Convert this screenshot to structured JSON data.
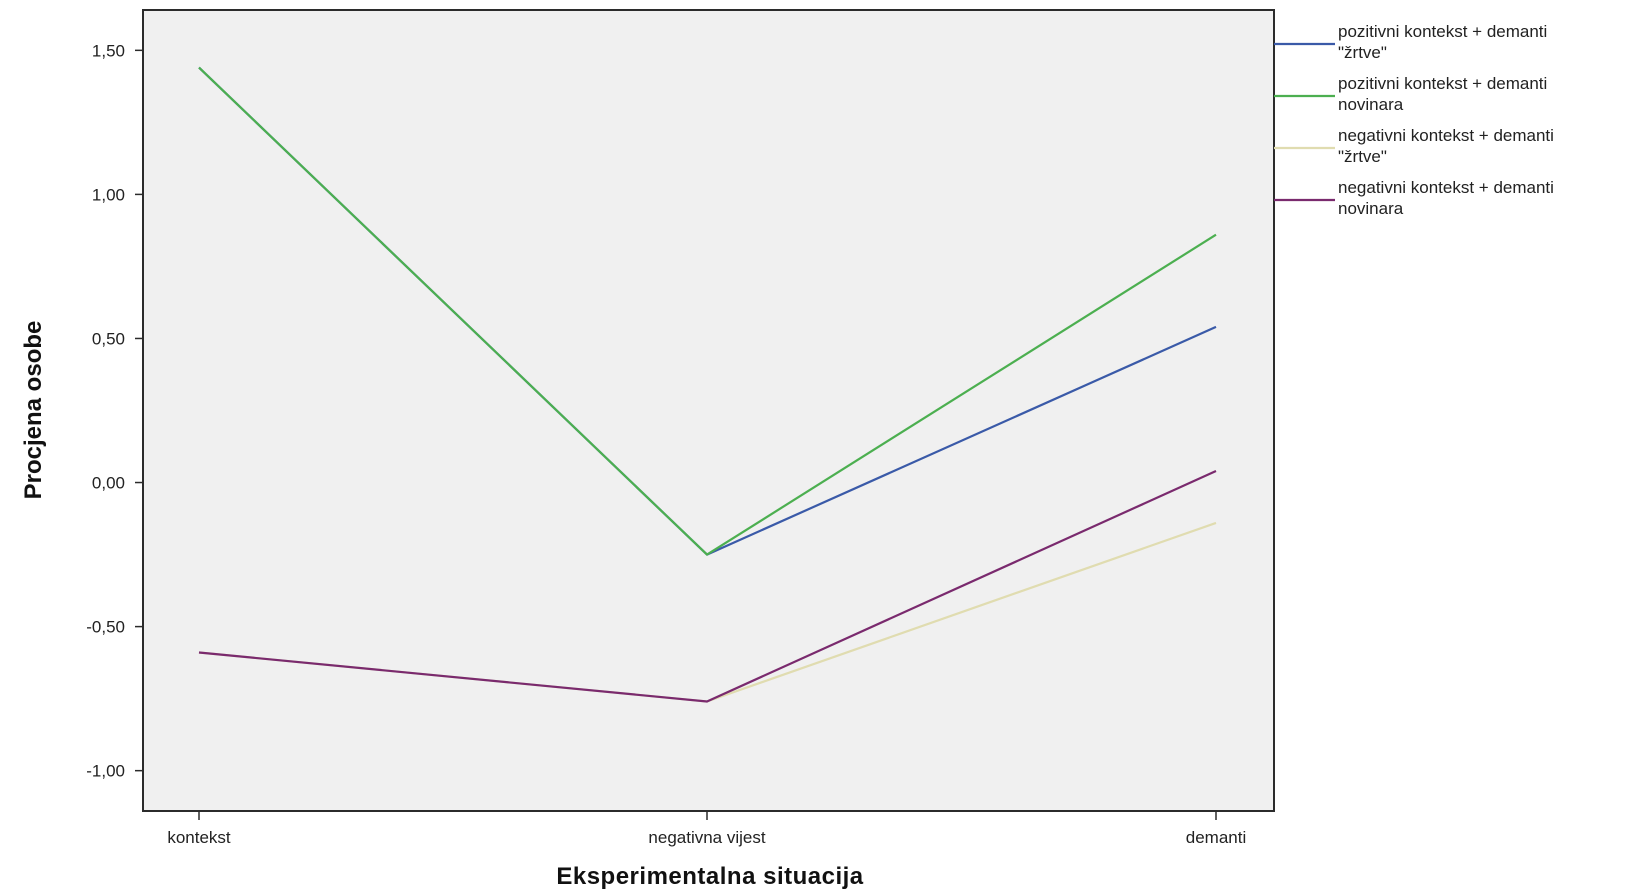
{
  "chart_data": {
    "type": "line",
    "xlabel": "Eksperimentalna situacija",
    "ylabel": "Procjena osobe",
    "categories": [
      "kontekst",
      "negativna vijest",
      "demanti"
    ],
    "yticks": [
      "1,50",
      "1,00",
      "0,50",
      "0,00",
      "-0,50",
      "-1,00"
    ],
    "ytick_values": [
      1.5,
      1.0,
      0.5,
      0.0,
      -0.5,
      -1.0
    ],
    "ylim": [
      -1.14,
      1.64
    ],
    "grid": false,
    "legend_position": "right",
    "plot_background": "#f0f0f0",
    "series": [
      {
        "name_lines": [
          "pozitivni kontekst + demanti",
          "\"žrtve\""
        ],
        "color": "#3a5aa8",
        "values": [
          1.44,
          -0.25,
          0.54
        ]
      },
      {
        "name_lines": [
          "pozitivni kontekst + demanti",
          "novinara"
        ],
        "color": "#4caf50",
        "values": [
          1.44,
          -0.25,
          0.86
        ]
      },
      {
        "name_lines": [
          "negativni kontekst + demanti",
          "\"žrtve\""
        ],
        "color": "#e0dcb0",
        "values": [
          -0.59,
          -0.76,
          -0.14
        ]
      },
      {
        "name_lines": [
          "negativni kontekst + demanti",
          "novinara"
        ],
        "color": "#7a2a6e",
        "values": [
          -0.59,
          -0.76,
          0.04
        ]
      }
    ]
  }
}
